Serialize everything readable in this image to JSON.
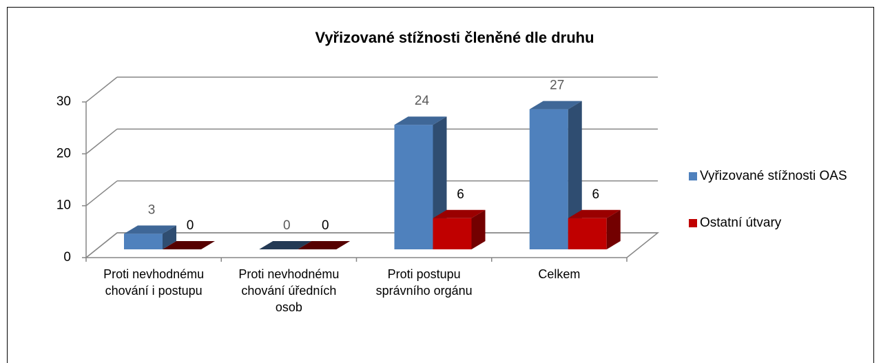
{
  "chart_data": {
    "type": "bar3d",
    "title": "Vyřizované stížnosti členěné dle druhu",
    "categories": [
      "Proti nevhodnému chování i postupu",
      "Proti nevhodnému chování úředních osob",
      "Proti postupu správního orgánu",
      "Celkem"
    ],
    "series": [
      {
        "name": "Vyřizované stížnosti OAS",
        "color": "#4f81bd",
        "values": [
          3,
          0,
          24,
          27
        ]
      },
      {
        "name": "Ostatní útvary",
        "color": "#c00000",
        "values": [
          0,
          0,
          6,
          6
        ]
      }
    ],
    "ylim": [
      0,
      30
    ],
    "yticks": [
      0,
      10,
      20,
      30
    ],
    "grid": true,
    "legend": "right"
  }
}
